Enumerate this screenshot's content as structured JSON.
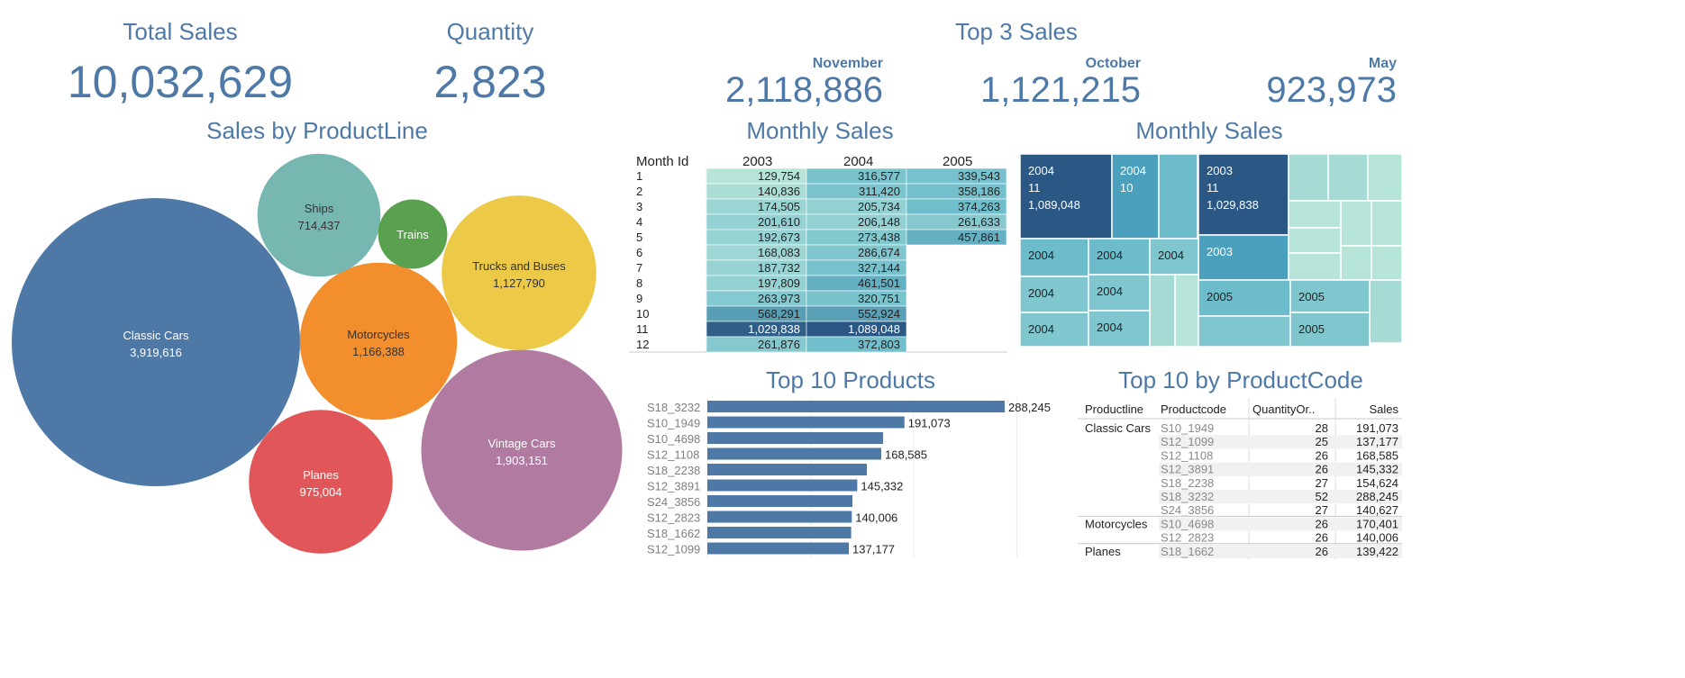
{
  "kpis": {
    "total_sales_title": "Total Sales",
    "total_sales_value": "10,032,629",
    "quantity_title": "Quantity",
    "quantity_value": "2,823"
  },
  "top3": {
    "title": "Top 3 Sales",
    "items": [
      {
        "month": "November",
        "value": "2,118,886"
      },
      {
        "month": "October",
        "value": "1,121,215"
      },
      {
        "month": "May",
        "value": "923,973"
      }
    ]
  },
  "colors": {
    "accent": "#4e79a7",
    "teal_light": "#b7e4d8",
    "teal_mid": "#6cbccb",
    "teal_dark": "#2a5783"
  },
  "chart_data": [
    {
      "type": "bubble",
      "title": "Sales by ProductLine",
      "series": [
        {
          "name": "Classic Cars",
          "label": "3,919,616",
          "value": 3919616,
          "color": "#4e79a7",
          "text_color": "#ffffff"
        },
        {
          "name": "Vintage Cars",
          "label": "1,903,151",
          "value": 1903151,
          "color": "#b07aa1",
          "text_color": "#ffffff"
        },
        {
          "name": "Motorcycles",
          "label": "1,166,388",
          "value": 1166388,
          "color": "#f28e2b",
          "text_color": "#333333"
        },
        {
          "name": "Trucks and Buses",
          "label": "1,127,790",
          "value": 1127790,
          "color": "#edc948",
          "text_color": "#333333"
        },
        {
          "name": "Planes",
          "label": "975,004",
          "value": 975004,
          "color": "#e15759",
          "text_color": "#ffffff"
        },
        {
          "name": "Ships",
          "label": "714,437",
          "value": 714437,
          "color": "#76b7b2",
          "text_color": "#333333"
        },
        {
          "name": "Trains",
          "label": "",
          "value": 226243,
          "color": "#59a14f",
          "text_color": "#ffffff"
        }
      ]
    },
    {
      "type": "heatmap",
      "title": "Monthly Sales",
      "row_header": "Month Id",
      "columns": [
        "2003",
        "2004",
        "2005"
      ],
      "rows": [
        "1",
        "2",
        "3",
        "4",
        "5",
        "6",
        "7",
        "8",
        "9",
        "10",
        "11",
        "12"
      ],
      "values": [
        [
          "129,754",
          "316,577",
          "339,543"
        ],
        [
          "140,836",
          "311,420",
          "358,186"
        ],
        [
          "174,505",
          "205,734",
          "374,263"
        ],
        [
          "201,610",
          "206,148",
          "261,633"
        ],
        [
          "192,673",
          "273,438",
          "457,861"
        ],
        [
          "168,083",
          "286,674",
          ""
        ],
        [
          "187,732",
          "327,144",
          ""
        ],
        [
          "197,809",
          "461,501",
          ""
        ],
        [
          "263,973",
          "320,751",
          ""
        ],
        [
          "568,291",
          "552,924",
          ""
        ],
        [
          "1,029,838",
          "1,089,048",
          ""
        ],
        [
          "261,876",
          "372,803",
          ""
        ]
      ],
      "numeric": [
        [
          129754,
          316577,
          339543
        ],
        [
          140836,
          311420,
          358186
        ],
        [
          174505,
          205734,
          374263
        ],
        [
          201610,
          206148,
          261633
        ],
        [
          192673,
          273438,
          457861
        ],
        [
          168083,
          286674,
          null
        ],
        [
          187732,
          327144,
          null
        ],
        [
          197809,
          461501,
          null
        ],
        [
          263973,
          320751,
          null
        ],
        [
          568291,
          552924,
          null
        ],
        [
          1029838,
          1089048,
          null
        ],
        [
          261876,
          372803,
          null
        ]
      ]
    },
    {
      "type": "treemap",
      "title": "Monthly Sales",
      "labels": [
        {
          "line1": "2004",
          "line2": "11",
          "line3": "1,089,048"
        },
        {
          "line1": "2004",
          "line2": "10",
          "line3": ""
        },
        {
          "line1": "2003",
          "line2": "11",
          "line3": "1,029,838"
        },
        {
          "line1": "2004"
        },
        {
          "line1": "2004"
        },
        {
          "line1": "2004"
        },
        {
          "line1": "2003"
        },
        {
          "line1": "2004"
        },
        {
          "line1": "2004"
        },
        {
          "line1": "2005"
        },
        {
          "line1": "2005"
        },
        {
          "line1": "2004"
        },
        {
          "line1": "2004"
        },
        {
          "line1": "2005"
        }
      ]
    },
    {
      "type": "bar",
      "title": "Top 10 Products",
      "categories": [
        "S18_3232",
        "S10_1949",
        "S10_4698",
        "S12_1108",
        "S18_2238",
        "S12_3891",
        "S24_3856",
        "S12_2823",
        "S18_1662",
        "S12_1099"
      ],
      "values": [
        288245,
        191073,
        170401,
        168585,
        154624,
        145332,
        140627,
        140006,
        139422,
        137177
      ],
      "labels": [
        "288,245",
        "191,073",
        "",
        "168,585",
        "",
        "145,332",
        "",
        "140,006",
        "",
        "137,177"
      ],
      "xlim": [
        0,
        300000
      ]
    },
    {
      "type": "table",
      "title": "Top 10 by ProductCode",
      "columns": [
        "Productline",
        "Productcode",
        "QuantityOr..",
        "Sales"
      ],
      "groups": [
        {
          "line": "Classic Cars",
          "rows": [
            [
              "S10_1949",
              "28",
              "191,073"
            ],
            [
              "S12_1099",
              "25",
              "137,177"
            ],
            [
              "S12_1108",
              "26",
              "168,585"
            ],
            [
              "S12_3891",
              "26",
              "145,332"
            ],
            [
              "S18_2238",
              "27",
              "154,624"
            ],
            [
              "S18_3232",
              "52",
              "288,245"
            ],
            [
              "S24_3856",
              "27",
              "140,627"
            ]
          ]
        },
        {
          "line": "Motorcycles",
          "rows": [
            [
              "S10_4698",
              "26",
              "170,401"
            ],
            [
              "S12_2823",
              "26",
              "140,006"
            ]
          ]
        },
        {
          "line": "Planes",
          "rows": [
            [
              "S18_1662",
              "26",
              "139,422"
            ]
          ]
        }
      ]
    }
  ]
}
